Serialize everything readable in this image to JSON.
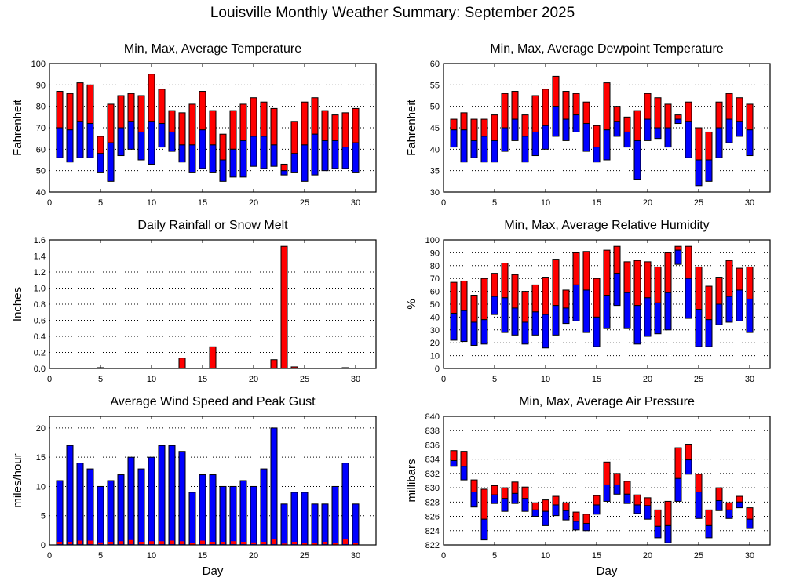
{
  "title": "Louisville Monthly Weather Summary: September 2025",
  "colors": {
    "max": "#ff0000",
    "avg_or_min": "#0000ff",
    "outline": "#000000"
  },
  "chart_data": [
    {
      "id": "temperature",
      "type": "bar",
      "title": "Min, Max, Average Temperature",
      "xlabel": "",
      "ylabel": "Fahrenheit",
      "xlim": [
        0,
        32
      ],
      "ylim": [
        40,
        100
      ],
      "xticks": [
        0,
        5,
        10,
        15,
        20,
        25,
        30
      ],
      "yticks": [
        40,
        50,
        60,
        70,
        80,
        90,
        100
      ],
      "ytick_labels": [
        "40",
        "50",
        "60",
        "70",
        "80",
        "90",
        "100"
      ],
      "grid": true,
      "style": "floating-range",
      "x": [
        1,
        2,
        3,
        4,
        5,
        6,
        7,
        8,
        9,
        10,
        11,
        12,
        13,
        14,
        15,
        16,
        17,
        18,
        19,
        20,
        21,
        22,
        23,
        24,
        25,
        26,
        27,
        28,
        29,
        30
      ],
      "series": [
        {
          "name": "Max",
          "values": [
            87,
            86,
            91,
            90,
            66,
            81,
            85,
            86,
            85,
            95,
            88,
            78,
            77,
            81,
            87,
            78,
            67,
            78,
            81,
            84,
            82,
            79,
            53,
            73,
            82,
            84,
            78,
            76,
            77,
            79
          ]
        },
        {
          "name": "Average",
          "values": [
            70,
            69,
            73,
            72,
            58,
            63,
            70,
            73,
            68,
            73,
            72,
            68,
            62,
            62,
            69,
            62,
            55,
            60,
            64,
            66,
            66,
            62,
            50,
            58,
            62,
            67,
            64,
            64,
            61,
            63
          ]
        },
        {
          "name": "Min",
          "values": [
            56,
            54,
            56,
            56,
            49,
            45,
            57,
            60,
            55,
            53,
            61,
            59,
            54,
            49,
            51,
            49,
            45,
            47,
            47,
            52,
            51,
            52,
            48,
            49,
            45,
            48,
            50,
            51,
            51,
            49
          ]
        }
      ]
    },
    {
      "id": "dewpoint",
      "type": "bar",
      "title": "Min, Max, Average Dewpoint Temperature",
      "xlabel": "",
      "ylabel": "Fahrenheit",
      "xlim": [
        0,
        32
      ],
      "ylim": [
        30,
        60
      ],
      "xticks": [
        0,
        5,
        10,
        15,
        20,
        25,
        30
      ],
      "yticks": [
        30,
        35,
        40,
        45,
        50,
        55,
        60
      ],
      "ytick_labels": [
        "30",
        "35",
        "40",
        "45",
        "50",
        "55",
        "60"
      ],
      "grid": true,
      "style": "floating-range",
      "x": [
        1,
        2,
        3,
        4,
        5,
        6,
        7,
        8,
        9,
        10,
        11,
        12,
        13,
        14,
        15,
        16,
        17,
        18,
        19,
        20,
        21,
        22,
        23,
        24,
        25,
        26,
        27,
        28,
        29,
        30
      ],
      "series": [
        {
          "name": "Max",
          "values": [
            47,
            48.5,
            47,
            47,
            48,
            53,
            53.5,
            48,
            52.5,
            54,
            57,
            53.5,
            53,
            51,
            45.5,
            55.5,
            50,
            47.5,
            49,
            53,
            52,
            50.5,
            48,
            51,
            45,
            44,
            51,
            53,
            52,
            50.5
          ]
        },
        {
          "name": "Average",
          "values": [
            44.5,
            44.5,
            42,
            43,
            42,
            45,
            47,
            43,
            44,
            45.5,
            50,
            47,
            48,
            46,
            40.5,
            44.5,
            46.5,
            44,
            42,
            47,
            45,
            45,
            47,
            46.5,
            37.5,
            37.5,
            45,
            47,
            46.5,
            44.5
          ]
        },
        {
          "name": "Min",
          "values": [
            40.5,
            37,
            38,
            37,
            37,
            39.5,
            42,
            37,
            38.5,
            40,
            43,
            42,
            44,
            39.5,
            37,
            37.5,
            43,
            40.5,
            33,
            42,
            42.5,
            40.5,
            46,
            38,
            31.5,
            32.5,
            38,
            41.5,
            43,
            38.5
          ]
        }
      ]
    },
    {
      "id": "rainfall",
      "type": "bar",
      "title": "Daily Rainfall or Snow Melt",
      "xlabel": "",
      "ylabel": "Inches",
      "xlim": [
        0,
        32
      ],
      "ylim": [
        0,
        1.6
      ],
      "xticks": [
        0,
        5,
        10,
        15,
        20,
        25,
        30
      ],
      "yticks": [
        0,
        0.2,
        0.4,
        0.6,
        0.8,
        1.0,
        1.2,
        1.4,
        1.6
      ],
      "ytick_labels": [
        "0.0",
        "0.2",
        "0.4",
        "0.6",
        "0.8",
        "1.0",
        "1.2",
        "1.4",
        "1.6"
      ],
      "grid": true,
      "style": "simple",
      "x": [
        1,
        2,
        3,
        4,
        5,
        6,
        7,
        8,
        9,
        10,
        11,
        12,
        13,
        14,
        15,
        16,
        17,
        18,
        19,
        20,
        21,
        22,
        23,
        24,
        25,
        26,
        27,
        28,
        29,
        30
      ],
      "series": [
        {
          "name": "Rainfall",
          "values": [
            0,
            0,
            0,
            0,
            0.01,
            0,
            0,
            0,
            0,
            0,
            0,
            0,
            0.13,
            0,
            0,
            0.27,
            0,
            0,
            0,
            0,
            0,
            0.11,
            1.52,
            0.02,
            0,
            0,
            0,
            0,
            0.01,
            0
          ]
        }
      ]
    },
    {
      "id": "humidity",
      "type": "bar",
      "title": "Min, Max, Average Relative Humidity",
      "xlabel": "",
      "ylabel": "%",
      "xlim": [
        0,
        32
      ],
      "ylim": [
        0,
        100
      ],
      "xticks": [
        0,
        5,
        10,
        15,
        20,
        25,
        30
      ],
      "yticks": [
        0,
        10,
        20,
        30,
        40,
        50,
        60,
        70,
        80,
        90,
        100
      ],
      "ytick_labels": [
        "0",
        "10",
        "20",
        "30",
        "40",
        "50",
        "60",
        "70",
        "80",
        "90",
        "100"
      ],
      "grid": true,
      "style": "floating-range",
      "x": [
        1,
        2,
        3,
        4,
        5,
        6,
        7,
        8,
        9,
        10,
        11,
        12,
        13,
        14,
        15,
        16,
        17,
        18,
        19,
        20,
        21,
        22,
        23,
        24,
        25,
        26,
        27,
        28,
        29,
        30
      ],
      "series": [
        {
          "name": "Max",
          "values": [
            67,
            68,
            57,
            70,
            74,
            82,
            73,
            60,
            65,
            71,
            85,
            61,
            90,
            91,
            70,
            92,
            95,
            83,
            84,
            83,
            79,
            90,
            95,
            95,
            79,
            64,
            71,
            84,
            78,
            79
          ]
        },
        {
          "name": "Average",
          "values": [
            43,
            45,
            36,
            38,
            56,
            55,
            47,
            36,
            44,
            42,
            49,
            47,
            65,
            61,
            40,
            57,
            74,
            59,
            49,
            55,
            51,
            59,
            92,
            70,
            46,
            38,
            50,
            56,
            61,
            54
          ]
        },
        {
          "name": "Min",
          "values": [
            22,
            21,
            18,
            19,
            42,
            28,
            26,
            19,
            26,
            16,
            26,
            35,
            37,
            28,
            17,
            31,
            49,
            31,
            19,
            25,
            27,
            30,
            81,
            39,
            17,
            17,
            34,
            36,
            37,
            28
          ]
        }
      ]
    },
    {
      "id": "wind",
      "type": "bar",
      "title": "Average Wind Speed and Peak Gust",
      "xlabel": "Day",
      "ylabel": "miles/hour",
      "xlim": [
        0,
        32
      ],
      "ylim": [
        0,
        22
      ],
      "xticks": [
        0,
        5,
        10,
        15,
        20,
        25,
        30
      ],
      "yticks": [
        0,
        5,
        10,
        15,
        20
      ],
      "ytick_labels": [
        "0",
        "5",
        "10",
        "15",
        "20"
      ],
      "grid": true,
      "style": "overlay",
      "x": [
        1,
        2,
        3,
        4,
        5,
        6,
        7,
        8,
        9,
        10,
        11,
        12,
        13,
        14,
        15,
        16,
        17,
        18,
        19,
        20,
        21,
        22,
        23,
        24,
        25,
        26,
        27,
        28,
        29,
        30
      ],
      "series": [
        {
          "name": "Peak Gust",
          "values": [
            11,
            17,
            14,
            13,
            10,
            11,
            12,
            15,
            13,
            15,
            17,
            17,
            16,
            9,
            12,
            12,
            10,
            10,
            11,
            10,
            13,
            20,
            7,
            9,
            9,
            7,
            7,
            10,
            14,
            7
          ]
        },
        {
          "name": "Average Wind Speed",
          "values": [
            0.4,
            0.4,
            0.6,
            0.6,
            0.3,
            0.4,
            0.5,
            0.7,
            0.4,
            0.5,
            0.5,
            0.6,
            0.5,
            0.2,
            0.6,
            0.4,
            0.4,
            0.5,
            0.4,
            0.3,
            0.4,
            0.8,
            0.1,
            0.4,
            0.2,
            0.2,
            0.4,
            0.2,
            0.8,
            0.2
          ]
        }
      ]
    },
    {
      "id": "pressure",
      "type": "bar",
      "title": "Min, Max, Average Air Pressure",
      "xlabel": "Day",
      "ylabel": "millibars",
      "xlim": [
        0,
        32
      ],
      "ylim": [
        822,
        840
      ],
      "xticks": [
        0,
        5,
        10,
        15,
        20,
        25,
        30
      ],
      "yticks": [
        822,
        824,
        826,
        828,
        830,
        832,
        834,
        836,
        838,
        840
      ],
      "ytick_labels": [
        "822",
        "824",
        "826",
        "828",
        "830",
        "832",
        "834",
        "836",
        "838",
        "840"
      ],
      "grid": true,
      "style": "floating-range",
      "x": [
        1,
        2,
        3,
        4,
        5,
        6,
        7,
        8,
        9,
        10,
        11,
        12,
        13,
        14,
        15,
        16,
        17,
        18,
        19,
        20,
        21,
        22,
        23,
        24,
        25,
        26,
        27,
        28,
        29,
        30
      ],
      "series": [
        {
          "name": "Max",
          "values": [
            835.2,
            835.1,
            831.1,
            829.8,
            830.3,
            830.0,
            830.8,
            830.1,
            827.9,
            828.3,
            828.8,
            827.9,
            826.6,
            826.3,
            828.9,
            833.6,
            832.0,
            830.9,
            829.0,
            828.6,
            826.9,
            828.1,
            835.6,
            836.1,
            831.9,
            826.9,
            830.0,
            827.9,
            828.8,
            827.2
          ]
        },
        {
          "name": "Average",
          "values": [
            833.8,
            833.0,
            829.4,
            825.6,
            829.0,
            828.5,
            829.2,
            828.5,
            826.9,
            826.7,
            827.6,
            826.8,
            825.3,
            825.0,
            827.6,
            830.4,
            830.4,
            829.1,
            827.6,
            827.5,
            824.6,
            824.7,
            831.3,
            833.9,
            829.4,
            824.7,
            828.2,
            826.9,
            828.0,
            825.6
          ]
        },
        {
          "name": "Min",
          "values": [
            833.0,
            831.1,
            827.3,
            822.7,
            827.8,
            826.7,
            827.8,
            826.7,
            826.0,
            824.7,
            826.1,
            825.5,
            824.1,
            824.0,
            826.3,
            828.1,
            829.1,
            827.8,
            826.4,
            825.6,
            823.0,
            822.3,
            828.1,
            831.9,
            825.7,
            823.0,
            826.8,
            825.7,
            827.2,
            824.3
          ]
        }
      ]
    }
  ]
}
